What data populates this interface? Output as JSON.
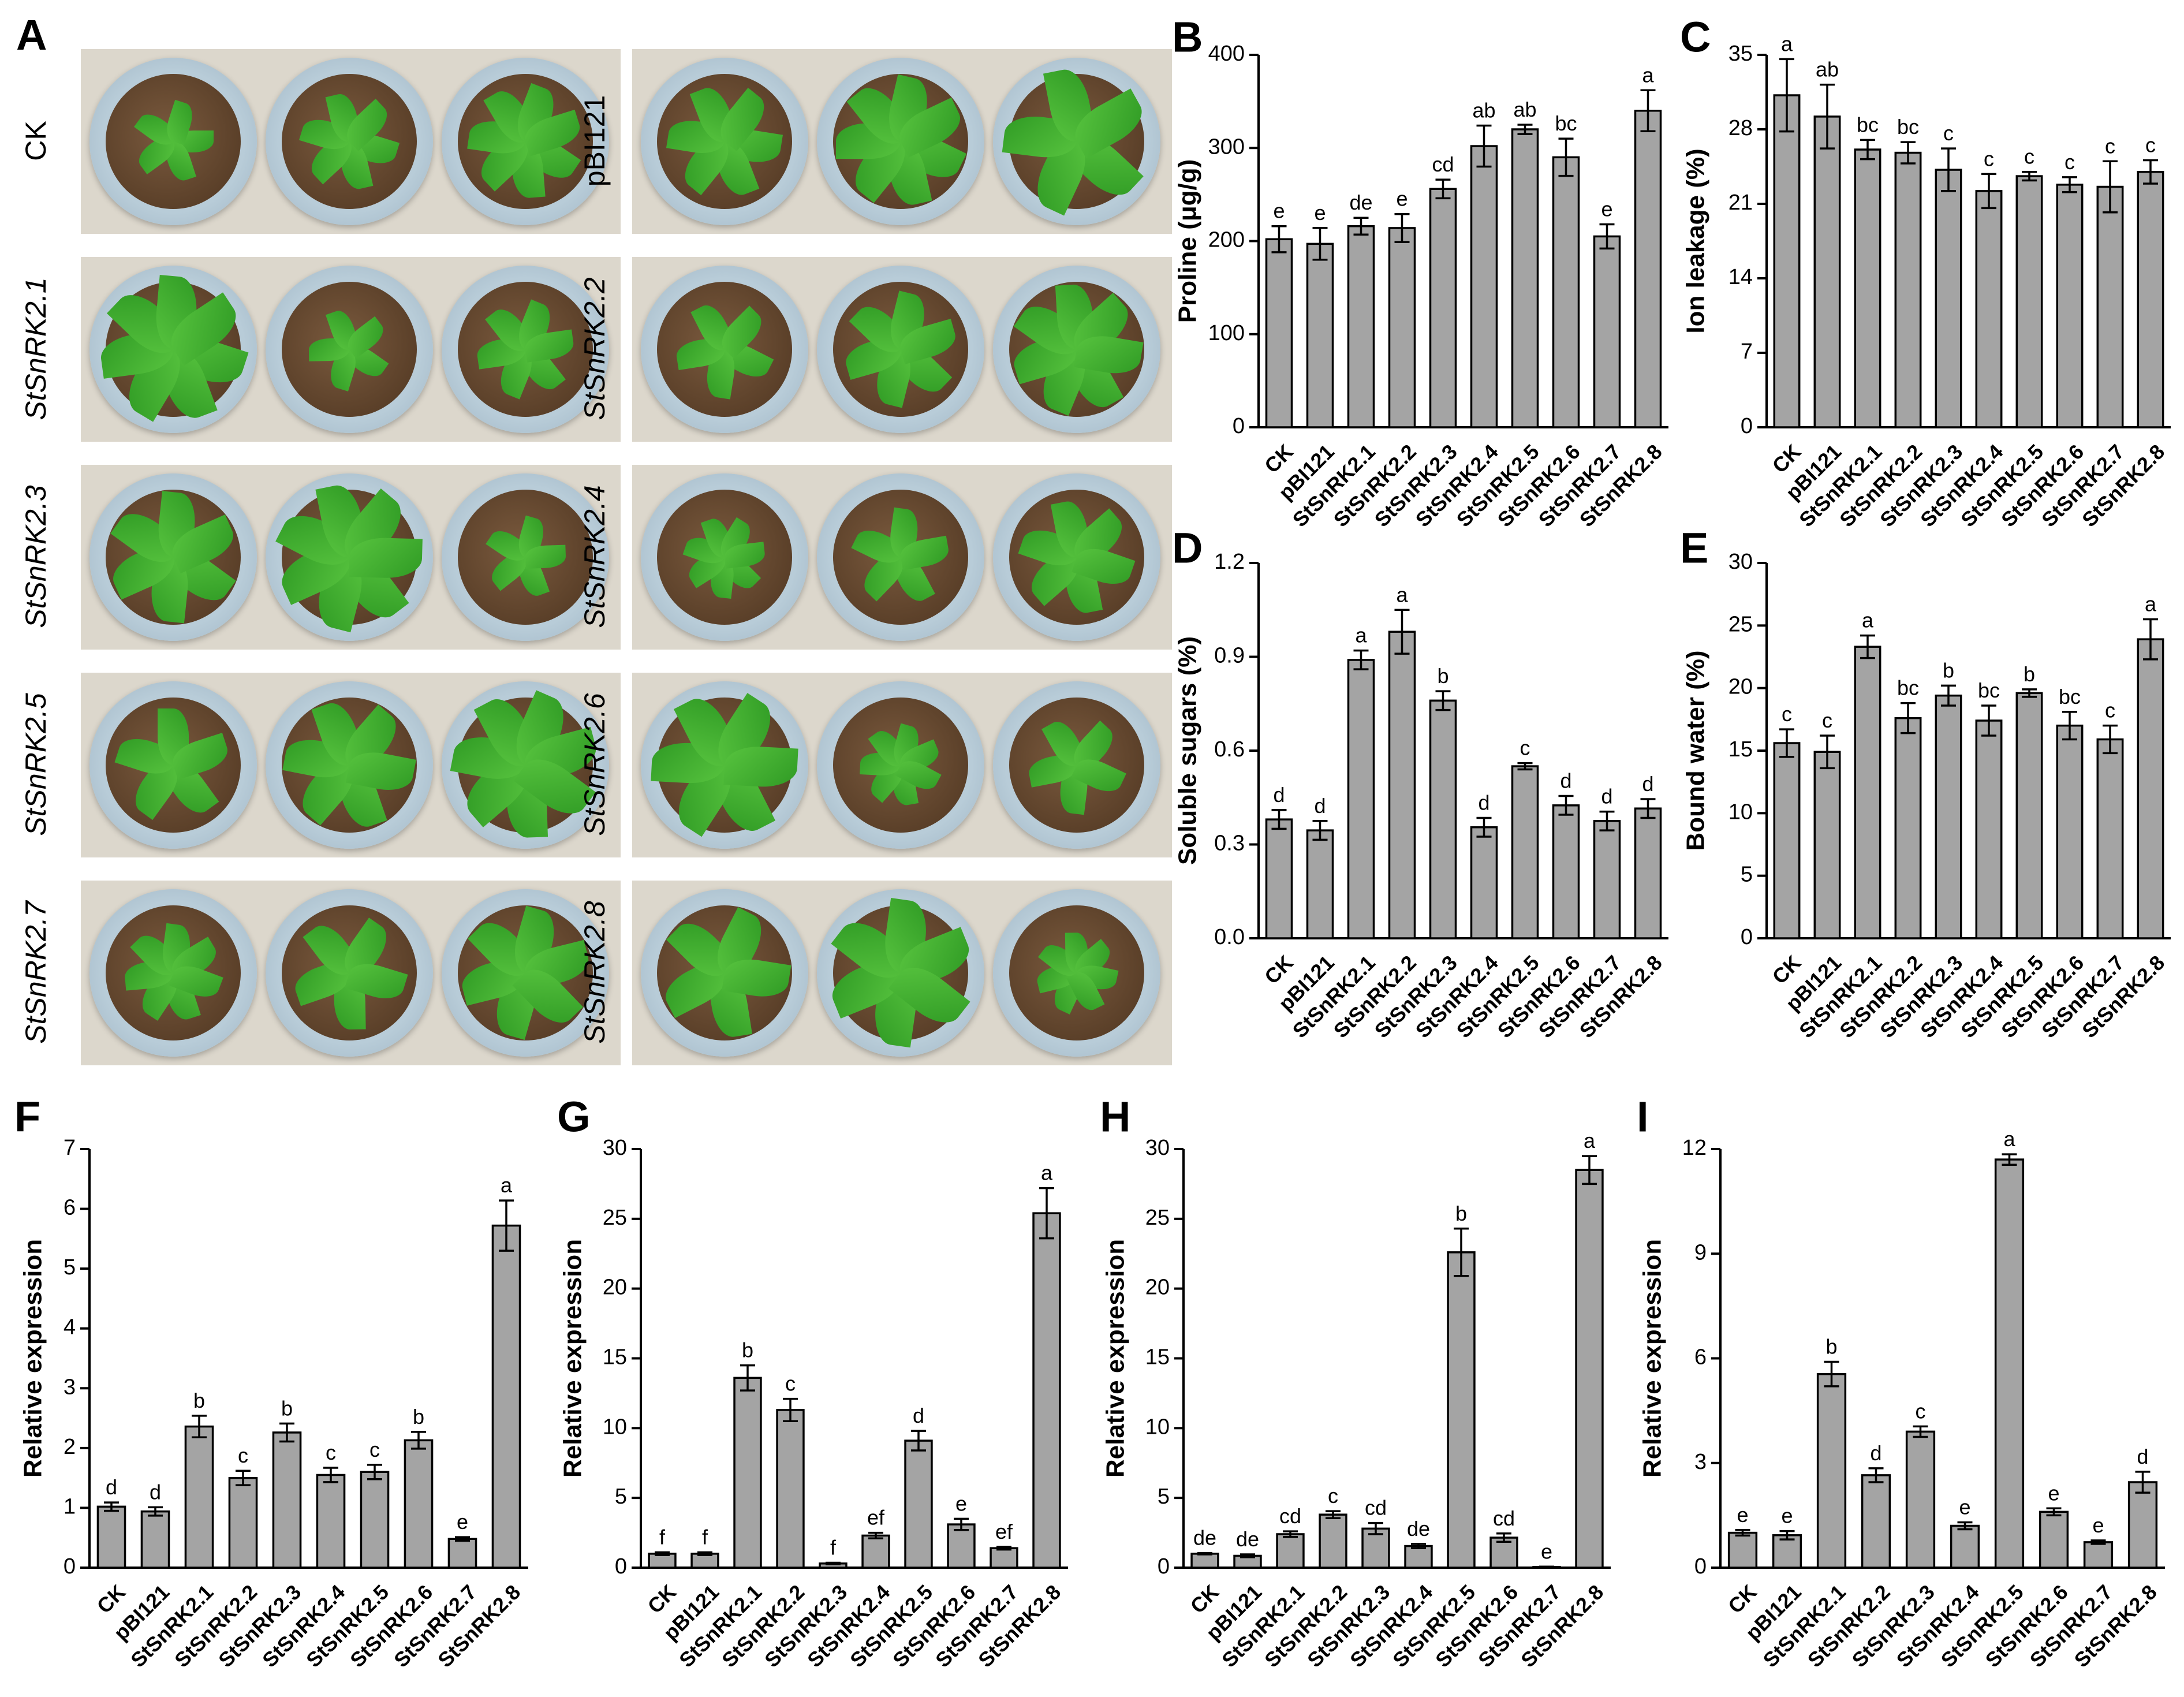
{
  "panel_a": {
    "letter": "A",
    "labels": [
      "CK",
      "pBI121",
      "StSnRK2.1",
      "StSnRK2.2",
      "StSnRK2.3",
      "StSnRK2.4",
      "StSnRK2.5",
      "StSnRK2.6",
      "StSnRK2.7",
      "StSnRK2.8"
    ]
  },
  "chart_data": [
    {
      "id": "B",
      "letter": "B",
      "type": "bar",
      "categories": [
        "CK",
        "pBI121",
        "StSnRK2.1",
        "StSnRK2.2",
        "StSnRK2.3",
        "StSnRK2.4",
        "StSnRK2.5",
        "StSnRK2.6",
        "StSnRK2.7",
        "StSnRK2.8"
      ],
      "values": [
        202,
        197,
        216,
        214,
        256,
        302,
        320,
        290,
        205,
        340
      ],
      "errors": [
        14,
        17,
        9,
        15,
        10,
        22,
        5,
        20,
        13,
        22
      ],
      "annotations": [
        "e",
        "e",
        "de",
        "e",
        "cd",
        "ab",
        "ab",
        "bc",
        "e",
        "a"
      ],
      "ylabel": "Proline (μg/g)",
      "ylim": [
        0,
        400
      ],
      "yticks": [
        "0",
        "100",
        "200",
        "300",
        "400"
      ]
    },
    {
      "id": "C",
      "letter": "C",
      "type": "bar",
      "categories": [
        "CK",
        "pBI121",
        "StSnRK2.1",
        "StSnRK2.2",
        "StSnRK2.3",
        "StSnRK2.4",
        "StSnRK2.5",
        "StSnRK2.6",
        "StSnRK2.7",
        "StSnRK2.8"
      ],
      "values": [
        31.2,
        29.2,
        26.1,
        25.8,
        24.2,
        22.2,
        23.6,
        22.8,
        22.6,
        24.0
      ],
      "errors": [
        3.4,
        3.0,
        0.9,
        1.0,
        2.0,
        1.6,
        0.4,
        0.7,
        2.4,
        1.1
      ],
      "annotations": [
        "a",
        "ab",
        "bc",
        "bc",
        "c",
        "c",
        "c",
        "c",
        "c",
        "c"
      ],
      "ylabel": "Ion leakage (%)",
      "ylim": [
        0,
        35
      ],
      "yticks": [
        "0",
        "7",
        "14",
        "21",
        "28",
        "35"
      ]
    },
    {
      "id": "D",
      "letter": "D",
      "type": "bar",
      "categories": [
        "CK",
        "pBI121",
        "StSnRK2.1",
        "StSnRK2.2",
        "StSnRK2.3",
        "StSnRK2.4",
        "StSnRK2.5",
        "StSnRK2.6",
        "StSnRK2.7",
        "StSnRK2.8"
      ],
      "values": [
        0.38,
        0.345,
        0.89,
        0.98,
        0.76,
        0.355,
        0.55,
        0.425,
        0.375,
        0.415
      ],
      "errors": [
        0.03,
        0.03,
        0.03,
        0.07,
        0.03,
        0.03,
        0.01,
        0.03,
        0.03,
        0.03
      ],
      "annotations": [
        "d",
        "d",
        "a",
        "a",
        "b",
        "d",
        "c",
        "d",
        "d",
        "d"
      ],
      "ylabel": "Soluble sugars (%)",
      "ylim": [
        0,
        1.2
      ],
      "yticks": [
        "0.0",
        "0.3",
        "0.6",
        "0.9",
        "1.2"
      ]
    },
    {
      "id": "E",
      "letter": "E",
      "type": "bar",
      "categories": [
        "CK",
        "pBI121",
        "StSnRK2.1",
        "StSnRK2.2",
        "StSnRK2.3",
        "StSnRK2.4",
        "StSnRK2.5",
        "StSnRK2.6",
        "StSnRK2.7",
        "StSnRK2.8"
      ],
      "values": [
        15.6,
        14.9,
        23.3,
        17.6,
        19.4,
        17.4,
        19.6,
        17.0,
        15.9,
        23.9
      ],
      "errors": [
        1.1,
        1.3,
        0.9,
        1.2,
        0.8,
        1.2,
        0.3,
        1.1,
        1.1,
        1.6
      ],
      "annotations": [
        "c",
        "c",
        "a",
        "bc",
        "b",
        "bc",
        "b",
        "bc",
        "c",
        "a"
      ],
      "ylabel": "Bound water (%)",
      "ylim": [
        0,
        30
      ],
      "yticks": [
        "0",
        "5",
        "10",
        "15",
        "20",
        "25",
        "30"
      ]
    },
    {
      "id": "F",
      "letter": "F",
      "type": "bar",
      "categories": [
        "CK",
        "pBI121",
        "StSnRK2.1",
        "StSnRK2.2",
        "StSnRK2.3",
        "StSnRK2.4",
        "StSnRK2.5",
        "StSnRK2.6",
        "StSnRK2.7",
        "StSnRK2.8"
      ],
      "values": [
        1.02,
        0.94,
        2.36,
        1.5,
        2.26,
        1.55,
        1.6,
        2.13,
        0.48,
        5.72
      ],
      "errors": [
        0.07,
        0.07,
        0.18,
        0.12,
        0.15,
        0.12,
        0.12,
        0.14,
        0.03,
        0.42
      ],
      "annotations": [
        "d",
        "d",
        "b",
        "c",
        "b",
        "c",
        "c",
        "b",
        "e",
        "a"
      ],
      "ylabel": "Relative expression",
      "ylim": [
        0,
        7
      ],
      "yticks": [
        "0",
        "1",
        "2",
        "3",
        "4",
        "5",
        "6",
        "7"
      ]
    },
    {
      "id": "G",
      "letter": "G",
      "type": "bar",
      "categories": [
        "CK",
        "pBI121",
        "StSnRK2.1",
        "StSnRK2.2",
        "StSnRK2.3",
        "StSnRK2.4",
        "StSnRK2.5",
        "StSnRK2.6",
        "StSnRK2.7",
        "StSnRK2.8"
      ],
      "values": [
        1.0,
        1.0,
        13.6,
        11.3,
        0.3,
        2.3,
        9.1,
        3.1,
        1.4,
        25.4
      ],
      "errors": [
        0.1,
        0.1,
        0.9,
        0.8,
        0.05,
        0.2,
        0.7,
        0.4,
        0.1,
        1.8
      ],
      "annotations": [
        "f",
        "f",
        "b",
        "c",
        "f",
        "ef",
        "d",
        "e",
        "ef",
        "a"
      ],
      "ylabel": "Relative expression",
      "ylim": [
        0,
        30
      ],
      "yticks": [
        "0",
        "5",
        "10",
        "15",
        "20",
        "25",
        "30"
      ]
    },
    {
      "id": "H",
      "letter": "H",
      "type": "bar",
      "categories": [
        "CK",
        "pBI121",
        "StSnRK2.1",
        "StSnRK2.2",
        "StSnRK2.3",
        "StSnRK2.4",
        "StSnRK2.5",
        "StSnRK2.6",
        "StSnRK2.7",
        "StSnRK2.8"
      ],
      "values": [
        1.0,
        0.85,
        2.4,
        3.8,
        2.8,
        1.55,
        22.6,
        2.15,
        0.05,
        28.5
      ],
      "errors": [
        0.05,
        0.1,
        0.2,
        0.25,
        0.4,
        0.15,
        1.7,
        0.3,
        0.02,
        1.0
      ],
      "annotations": [
        "de",
        "de",
        "cd",
        "c",
        "cd",
        "de",
        "b",
        "cd",
        "e",
        "a"
      ],
      "ylabel": "Relative expression",
      "ylim": [
        0,
        30
      ],
      "yticks": [
        "0",
        "5",
        "10",
        "15",
        "20",
        "25",
        "30"
      ]
    },
    {
      "id": "I",
      "letter": "I",
      "type": "bar",
      "categories": [
        "CK",
        "pBI121",
        "StSnRK2.1",
        "StSnRK2.2",
        "StSnRK2.3",
        "StSnRK2.4",
        "StSnRK2.5",
        "StSnRK2.6",
        "StSnRK2.7",
        "StSnRK2.8"
      ],
      "values": [
        1.0,
        0.93,
        5.55,
        2.65,
        3.9,
        1.2,
        11.7,
        1.6,
        0.73,
        2.45
      ],
      "errors": [
        0.08,
        0.12,
        0.35,
        0.2,
        0.15,
        0.1,
        0.15,
        0.1,
        0.05,
        0.3
      ],
      "annotations": [
        "e",
        "e",
        "b",
        "d",
        "c",
        "e",
        "a",
        "e",
        "e",
        "d"
      ],
      "ylabel": "Relative expression",
      "ylim": [
        0,
        12
      ],
      "yticks": [
        "0",
        "3",
        "6",
        "9",
        "12"
      ]
    }
  ],
  "colors": {
    "bar": "#a4a4a4",
    "axis": "#000000"
  }
}
